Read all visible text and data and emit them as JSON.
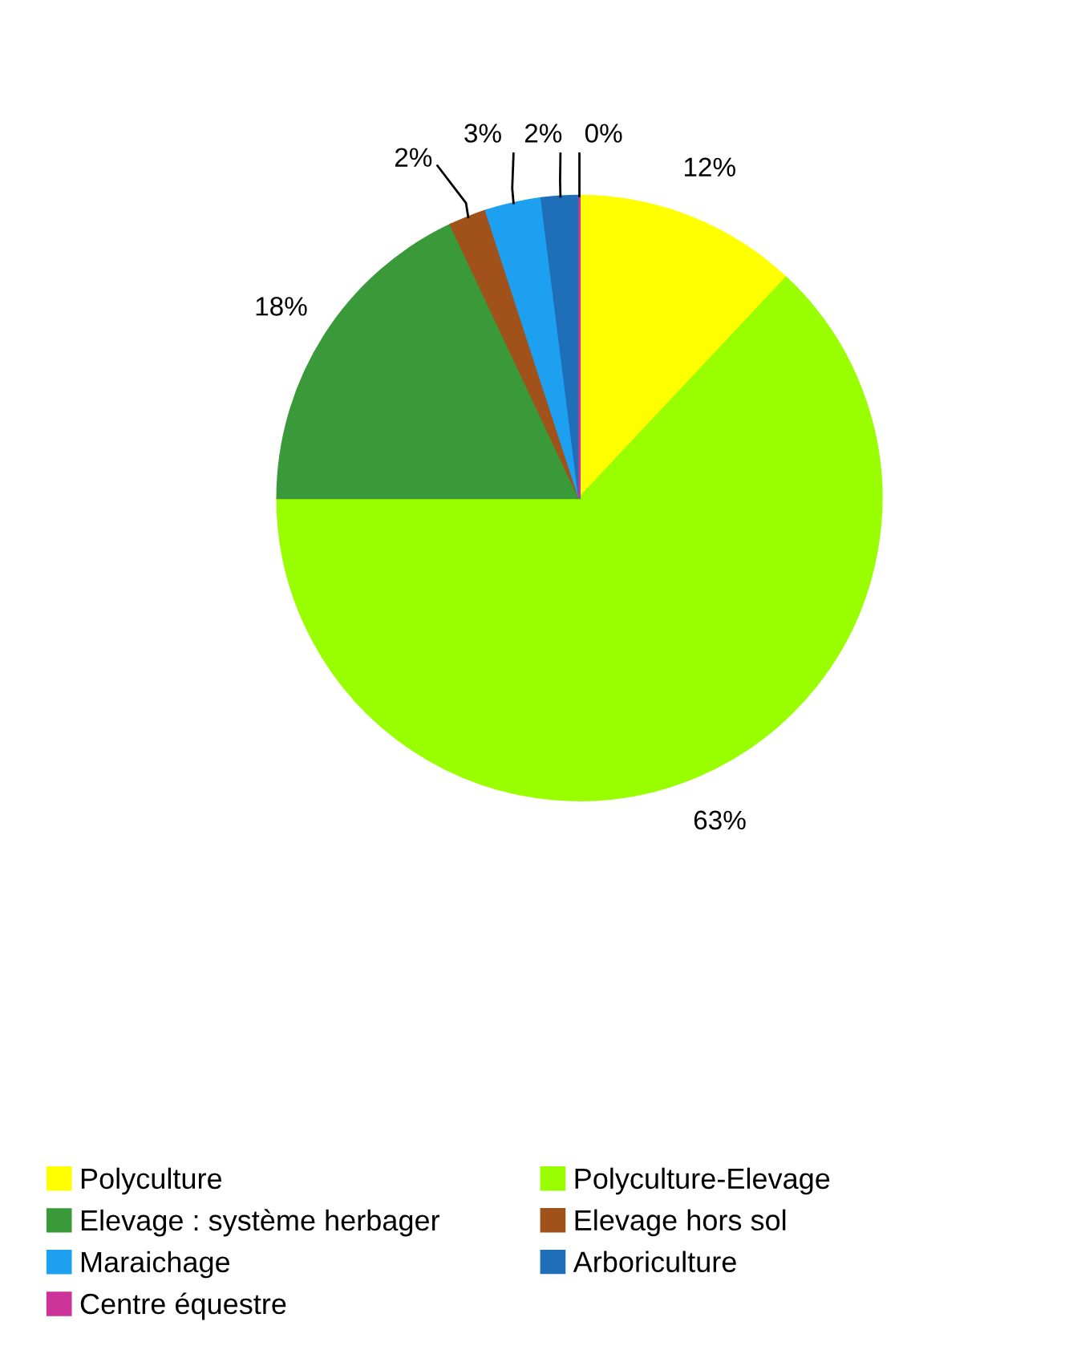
{
  "chart_data": {
    "type": "pie",
    "categories": [
      "Polyculture",
      "Polyculture-Elevage",
      "Elevage : système herbager",
      "Elevage hors sol",
      "Maraichage",
      "Arboriculture",
      "Centre équestre"
    ],
    "values": [
      12,
      63,
      18,
      2,
      3,
      2,
      0
    ],
    "colors": [
      "#ffff00",
      "#99ff00",
      "#3a9a3a",
      "#a0521a",
      "#1ea0f0",
      "#1f6fb8",
      "#cc3399"
    ],
    "value_labels": [
      "12%",
      "63%",
      "18%",
      "2%",
      "3%",
      "2%",
      "0%"
    ],
    "legend": "bottom"
  }
}
